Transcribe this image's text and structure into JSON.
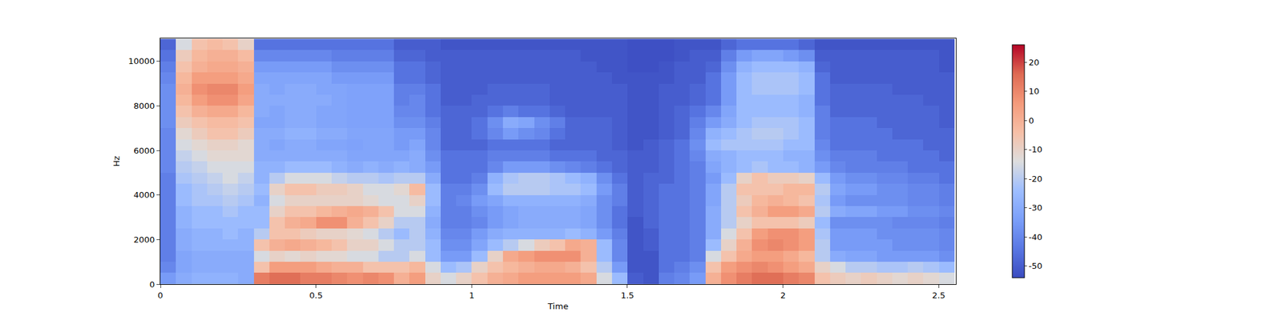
{
  "chart_data": {
    "type": "heatmap",
    "xlabel": "Time",
    "ylabel": "Hz",
    "xlim": [
      0,
      2.555
    ],
    "ylim": [
      0,
      11025
    ],
    "xticks": [
      0,
      0.5,
      1,
      1.5,
      2,
      2.5
    ],
    "yticks": [
      0,
      2000,
      4000,
      6000,
      8000,
      10000
    ],
    "colorbar_range": [
      -54,
      26
    ],
    "colorbar_ticks": [
      -50,
      -40,
      -30,
      -20,
      -10,
      0,
      10,
      20
    ],
    "x": [
      0.025,
      0.075,
      0.125,
      0.175,
      0.225,
      0.275,
      0.325,
      0.375,
      0.425,
      0.475,
      0.525,
      0.575,
      0.625,
      0.675,
      0.725,
      0.775,
      0.825,
      0.875,
      0.925,
      0.975,
      1.025,
      1.075,
      1.125,
      1.175,
      1.225,
      1.275,
      1.325,
      1.375,
      1.425,
      1.475,
      1.525,
      1.575,
      1.625,
      1.675,
      1.725,
      1.775,
      1.825,
      1.875,
      1.925,
      1.975,
      2.025,
      2.075,
      2.125,
      2.175,
      2.225,
      2.275,
      2.325,
      2.375,
      2.425,
      2.475,
      2.525
    ],
    "y": [
      250,
      750,
      1250,
      1750,
      2250,
      2750,
      3250,
      3750,
      4250,
      4750,
      5250,
      5750,
      6250,
      6750,
      7250,
      7750,
      8250,
      8750,
      9250,
      9750,
      10250,
      10750
    ],
    "z_by_time": [
      [
        -35,
        -40,
        -42,
        -42,
        -42,
        -42,
        -42,
        -42,
        -42,
        -42,
        -40,
        -40,
        -40,
        -40,
        -38,
        -38,
        -38,
        -38,
        -40,
        -42,
        -45,
        -48
      ],
      [
        -30,
        -32,
        -32,
        -30,
        -30,
        -28,
        -28,
        -25,
        -25,
        -22,
        -20,
        -18,
        -15,
        -12,
        -8,
        -5,
        -2,
        0,
        -2,
        -5,
        -8,
        -15
      ],
      [
        -28,
        -30,
        -30,
        -28,
        -28,
        -25,
        -25,
        -22,
        -22,
        -20,
        -18,
        -15,
        -12,
        -8,
        -5,
        0,
        5,
        8,
        5,
        0,
        -2,
        -5
      ],
      [
        -28,
        -30,
        -30,
        -28,
        -28,
        -25,
        -25,
        -22,
        -20,
        -18,
        -15,
        -12,
        -10,
        -5,
        -3,
        2,
        8,
        10,
        5,
        2,
        0,
        -3
      ],
      [
        -28,
        -30,
        -30,
        -28,
        -25,
        -25,
        -22,
        -20,
        -18,
        -15,
        -15,
        -12,
        -10,
        -5,
        -3,
        2,
        8,
        10,
        5,
        2,
        0,
        -5
      ],
      [
        -30,
        -30,
        -30,
        -28,
        -28,
        -25,
        -25,
        -22,
        -20,
        -18,
        -15,
        -12,
        -12,
        -8,
        -5,
        -2,
        3,
        5,
        2,
        0,
        -3,
        -10
      ],
      [
        12,
        -5,
        -15,
        -5,
        -20,
        -25,
        -25,
        -28,
        -25,
        -28,
        -28,
        -30,
        -30,
        -30,
        -32,
        -30,
        -30,
        -30,
        -32,
        -35,
        -40,
        -45
      ],
      [
        15,
        5,
        -10,
        0,
        -5,
        -5,
        -10,
        -15,
        -10,
        -20,
        -28,
        -30,
        -32,
        -30,
        -32,
        -32,
        -30,
        -32,
        -32,
        -35,
        -40,
        -45
      ],
      [
        15,
        5,
        -12,
        2,
        -5,
        0,
        -5,
        -10,
        -5,
        -15,
        -25,
        -30,
        -30,
        -28,
        -30,
        -30,
        -30,
        -30,
        -32,
        -35,
        -40,
        -45
      ],
      [
        12,
        5,
        -10,
        0,
        -8,
        2,
        -5,
        -10,
        -5,
        -15,
        -25,
        -30,
        -30,
        -28,
        -30,
        -30,
        -30,
        -30,
        -32,
        -35,
        -40,
        -45
      ],
      [
        12,
        2,
        -12,
        -2,
        -10,
        8,
        -2,
        -10,
        -8,
        -15,
        -25,
        -30,
        -32,
        -30,
        -32,
        -32,
        -30,
        -32,
        -32,
        -35,
        -40,
        -45
      ],
      [
        10,
        0,
        -12,
        -5,
        -10,
        8,
        0,
        -10,
        -8,
        -18,
        -28,
        -30,
        -32,
        -30,
        -32,
        -32,
        -32,
        -32,
        -35,
        -38,
        -42,
        -45
      ],
      [
        8,
        0,
        -15,
        -10,
        -12,
        0,
        2,
        -10,
        -10,
        -20,
        -30,
        -32,
        -33,
        -32,
        -33,
        -33,
        -33,
        -33,
        -35,
        -38,
        -42,
        -45
      ],
      [
        10,
        -5,
        -15,
        -10,
        -15,
        -5,
        0,
        -12,
        -15,
        -20,
        -28,
        -32,
        -32,
        -32,
        -33,
        -33,
        -33,
        -33,
        -35,
        -38,
        -42,
        -45
      ],
      [
        8,
        -5,
        -20,
        -15,
        -20,
        -10,
        -5,
        -15,
        -15,
        -22,
        -30,
        -32,
        -32,
        -32,
        -33,
        -33,
        -33,
        -33,
        -35,
        -38,
        -42,
        -45
      ],
      [
        0,
        -5,
        -20,
        -20,
        -25,
        -20,
        -15,
        -15,
        -12,
        -20,
        -28,
        -32,
        -35,
        -35,
        -38,
        -40,
        -42,
        -42,
        -45,
        -45,
        -48,
        -50
      ],
      [
        5,
        -2,
        -15,
        -20,
        -20,
        -20,
        -15,
        -10,
        -3,
        -20,
        -30,
        -30,
        -32,
        -35,
        -38,
        -40,
        -40,
        -42,
        -45,
        -45,
        -48,
        -50
      ],
      [
        -10,
        -15,
        -25,
        -25,
        -28,
        -30,
        -28,
        -25,
        -25,
        -30,
        -35,
        -38,
        -40,
        -40,
        -42,
        -45,
        -45,
        -45,
        -48,
        -48,
        -50,
        -50
      ],
      [
        -15,
        -25,
        -35,
        -38,
        -40,
        -42,
        -42,
        -42,
        -42,
        -45,
        -45,
        -45,
        -48,
        -48,
        -48,
        -48,
        -50,
        -50,
        -50,
        -50,
        -50,
        -52
      ],
      [
        -10,
        -22,
        -35,
        -38,
        -40,
        -42,
        -42,
        -40,
        -42,
        -45,
        -45,
        -45,
        -48,
        -48,
        -48,
        -48,
        -50,
        -50,
        -50,
        -50,
        -50,
        -52
      ],
      [
        -5,
        -10,
        -25,
        -32,
        -35,
        -40,
        -38,
        -35,
        -38,
        -42,
        -45,
        -45,
        -48,
        -45,
        -45,
        -48,
        -48,
        -50,
        -50,
        -50,
        -50,
        -52
      ],
      [
        0,
        -5,
        -10,
        -25,
        -30,
        -35,
        -35,
        -32,
        -25,
        -28,
        -40,
        -42,
        -45,
        -40,
        -38,
        -45,
        -48,
        -48,
        -50,
        -50,
        -50,
        -52
      ],
      [
        2,
        -2,
        2,
        -20,
        -28,
        -32,
        -32,
        -28,
        -20,
        -22,
        -35,
        -42,
        -45,
        -35,
        -30,
        -42,
        -48,
        -48,
        -50,
        -50,
        -50,
        -52
      ],
      [
        5,
        0,
        5,
        -15,
        -28,
        -30,
        -30,
        -28,
        -20,
        -20,
        -35,
        -42,
        -45,
        -38,
        -32,
        -45,
        -48,
        -48,
        -50,
        -50,
        -50,
        -52
      ],
      [
        5,
        2,
        8,
        -8,
        -28,
        -30,
        -30,
        -28,
        -20,
        -20,
        -35,
        -42,
        -45,
        -40,
        -38,
        -45,
        -48,
        -48,
        -50,
        -50,
        -50,
        -52
      ],
      [
        5,
        2,
        8,
        -5,
        -28,
        -30,
        -30,
        -28,
        -22,
        -22,
        -38,
        -45,
        -48,
        -45,
        -42,
        -48,
        -50,
        -50,
        -50,
        -50,
        -50,
        -52
      ],
      [
        5,
        0,
        8,
        2,
        -25,
        -30,
        -30,
        -28,
        -22,
        -25,
        -40,
        -45,
        -48,
        -48,
        -48,
        -50,
        -50,
        -50,
        -50,
        -50,
        -50,
        -52
      ],
      [
        2,
        -5,
        0,
        0,
        -28,
        -32,
        -32,
        -30,
        -25,
        -28,
        -42,
        -45,
        -48,
        -48,
        -48,
        -50,
        -50,
        -50,
        -50,
        -50,
        -52,
        -52
      ],
      [
        -15,
        -20,
        -25,
        -25,
        -35,
        -38,
        -38,
        -38,
        -35,
        -38,
        -45,
        -48,
        -48,
        -48,
        -48,
        -50,
        -50,
        -50,
        -50,
        -52,
        -52,
        -52
      ],
      [
        -25,
        -35,
        -40,
        -40,
        -42,
        -45,
        -45,
        -42,
        -42,
        -45,
        -48,
        -48,
        -50,
        -50,
        -50,
        -50,
        -50,
        -50,
        -52,
        -52,
        -52,
        -52
      ],
      [
        -50,
        -52,
        -52,
        -52,
        -52,
        -52,
        -50,
        -50,
        -50,
        -50,
        -50,
        -50,
        -52,
        -52,
        -52,
        -52,
        -52,
        -52,
        -52,
        -53,
        -53,
        -53
      ],
      [
        -52,
        -52,
        -52,
        -50,
        -50,
        -48,
        -48,
        -48,
        -48,
        -48,
        -50,
        -50,
        -50,
        -52,
        -52,
        -52,
        -52,
        -52,
        -52,
        -53,
        -53,
        -53
      ],
      [
        -42,
        -45,
        -45,
        -45,
        -45,
        -45,
        -45,
        -45,
        -45,
        -48,
        -48,
        -48,
        -48,
        -50,
        -50,
        -50,
        -50,
        -50,
        -52,
        -52,
        -53,
        -53
      ],
      [
        -40,
        -42,
        -45,
        -45,
        -45,
        -45,
        -45,
        -45,
        -45,
        -45,
        -45,
        -45,
        -45,
        -48,
        -48,
        -48,
        -50,
        -50,
        -50,
        -50,
        -52,
        -52
      ],
      [
        -35,
        -38,
        -42,
        -42,
        -42,
        -42,
        -42,
        -42,
        -42,
        -42,
        -42,
        -40,
        -38,
        -40,
        -42,
        -45,
        -48,
        -48,
        -50,
        -50,
        -50,
        -52
      ],
      [
        0,
        -5,
        -15,
        -25,
        -30,
        -30,
        -30,
        -32,
        -32,
        -35,
        -32,
        -30,
        -25,
        -28,
        -35,
        -40,
        -45,
        -45,
        -45,
        -48,
        -50,
        -52
      ],
      [
        8,
        5,
        -5,
        -10,
        -15,
        -20,
        -20,
        -20,
        -20,
        -25,
        -28,
        -28,
        -22,
        -25,
        -30,
        -32,
        -35,
        -35,
        -35,
        -38,
        -42,
        -48
      ],
      [
        12,
        8,
        2,
        0,
        -5,
        -10,
        -5,
        -8,
        -5,
        -10,
        -25,
        -25,
        -22,
        -22,
        -25,
        -25,
        -25,
        -25,
        -25,
        -28,
        -35,
        -45
      ],
      [
        15,
        10,
        5,
        8,
        5,
        -5,
        0,
        -2,
        -5,
        -5,
        -22,
        -25,
        -22,
        -20,
        -22,
        -25,
        -25,
        -22,
        -22,
        -25,
        -32,
        -45
      ],
      [
        15,
        8,
        5,
        10,
        8,
        -5,
        5,
        0,
        -5,
        -8,
        -25,
        -25,
        -22,
        -20,
        -22,
        -25,
        -25,
        -22,
        -22,
        -25,
        -32,
        -45
      ],
      [
        12,
        5,
        2,
        8,
        8,
        -5,
        5,
        -2,
        -2,
        -8,
        -25,
        -28,
        -25,
        -22,
        -22,
        -25,
        -25,
        -22,
        -22,
        -25,
        -35,
        -45
      ],
      [
        10,
        2,
        -2,
        5,
        5,
        -8,
        2,
        -5,
        -2,
        -10,
        -28,
        -28,
        -25,
        -25,
        -25,
        -28,
        -28,
        -25,
        -25,
        -28,
        -38,
        -48
      ],
      [
        -5,
        -10,
        -20,
        -20,
        -22,
        -25,
        -20,
        -22,
        -20,
        -25,
        -35,
        -38,
        -40,
        -42,
        -42,
        -42,
        -45,
        -45,
        -45,
        -48,
        -50,
        -52
      ],
      [
        -8,
        -15,
        -30,
        -35,
        -35,
        -38,
        -30,
        -35,
        -32,
        -35,
        -40,
        -42,
        -45,
        -45,
        -45,
        -48,
        -48,
        -48,
        -50,
        -50,
        -50,
        -52
      ],
      [
        -10,
        -20,
        -32,
        -35,
        -35,
        -38,
        -32,
        -38,
        -35,
        -38,
        -42,
        -42,
        -45,
        -45,
        -45,
        -48,
        -48,
        -48,
        -50,
        -50,
        -50,
        -52
      ],
      [
        -8,
        -20,
        -32,
        -35,
        -35,
        -38,
        -32,
        -38,
        -35,
        -38,
        -42,
        -42,
        -45,
        -45,
        -45,
        -48,
        -48,
        -48,
        -50,
        -50,
        -50,
        -52
      ],
      [
        -10,
        -22,
        -35,
        -35,
        -38,
        -38,
        -35,
        -38,
        -38,
        -40,
        -42,
        -45,
        -45,
        -45,
        -48,
        -48,
        -48,
        -48,
        -50,
        -50,
        -50,
        -52
      ],
      [
        -12,
        -22,
        -35,
        -38,
        -38,
        -40,
        -35,
        -38,
        -38,
        -40,
        -42,
        -45,
        -45,
        -48,
        -48,
        -48,
        -48,
        -50,
        -50,
        -50,
        -50,
        -52
      ],
      [
        -10,
        -20,
        -35,
        -38,
        -38,
        -40,
        -38,
        -40,
        -40,
        -42,
        -45,
        -45,
        -45,
        -48,
        -48,
        -48,
        -48,
        -50,
        -50,
        -50,
        -50,
        -52
      ],
      [
        -12,
        -22,
        -35,
        -38,
        -38,
        -40,
        -38,
        -40,
        -40,
        -42,
        -45,
        -45,
        -48,
        -48,
        -48,
        -48,
        -50,
        -50,
        -50,
        -50,
        -50,
        -52
      ],
      [
        -15,
        -25,
        -38,
        -40,
        -40,
        -42,
        -40,
        -42,
        -42,
        -45,
        -45,
        -48,
        -48,
        -48,
        -50,
        -50,
        -50,
        -50,
        -50,
        -52,
        -52,
        -52
      ]
    ]
  }
}
